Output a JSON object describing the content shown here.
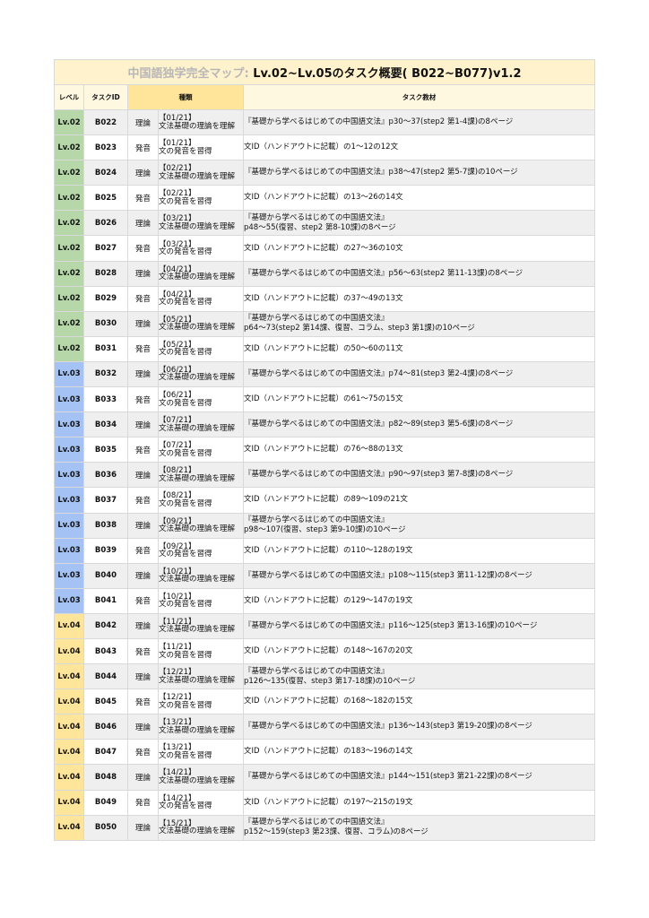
{
  "title": {
    "prefix": "中国語独学完全マップ: ",
    "main": "Lv.02~Lv.05のタスク概要( B022~B077)v1.2"
  },
  "headers": {
    "level": "レベル",
    "task_id": "タスクID",
    "kind": "種類",
    "material": "タスク教材"
  },
  "level_colors": {
    "Lv.02": "#b6d7a8",
    "Lv.03": "#a4c2f4",
    "Lv.04": "#ffe599"
  },
  "rows": [
    {
      "level": "Lv.02",
      "id": "B022",
      "type": "理論",
      "note": "【01/21】\n文法基礎の理論を理解",
      "material": "『基礎から学べるはじめての中国語文法』p30～37(step2 第1-4課)の8ページ"
    },
    {
      "level": "Lv.02",
      "id": "B023",
      "type": "発音",
      "note": "【01/21】\n文の発音を習得",
      "material": "文ID（ハンドアウトに記載）の1～12の12文"
    },
    {
      "level": "Lv.02",
      "id": "B024",
      "type": "理論",
      "note": "【02/21】\n文法基礎の理論を理解",
      "material": "『基礎から学べるはじめての中国語文法』p38～47(step2 第5-7課)の10ページ"
    },
    {
      "level": "Lv.02",
      "id": "B025",
      "type": "発音",
      "note": "【02/21】\n文の発音を習得",
      "material": "文ID（ハンドアウトに記載）の13～26の14文"
    },
    {
      "level": "Lv.02",
      "id": "B026",
      "type": "理論",
      "note": "【03/21】\n文法基礎の理論を理解",
      "material": "『基礎から学べるはじめての中国語文法』\np48～55(復習、step2 第8-10課)の8ページ"
    },
    {
      "level": "Lv.02",
      "id": "B027",
      "type": "発音",
      "note": "【03/21】\n文の発音を習得",
      "material": "文ID（ハンドアウトに記載）の27～36の10文"
    },
    {
      "level": "Lv.02",
      "id": "B028",
      "type": "理論",
      "note": "【04/21】\n文法基礎の理論を理解",
      "material": "『基礎から学べるはじめての中国語文法』p56～63(step2 第11-13課)の8ページ"
    },
    {
      "level": "Lv.02",
      "id": "B029",
      "type": "発音",
      "note": "【04/21】\n文の発音を習得",
      "material": "文ID（ハンドアウトに記載）の37～49の13文"
    },
    {
      "level": "Lv.02",
      "id": "B030",
      "type": "理論",
      "note": "【05/21】\n文法基礎の理論を理解",
      "material": "『基礎から学べるはじめての中国語文法』\np64～73(step2 第14課、復習、コラム、step3 第1課)の10ページ"
    },
    {
      "level": "Lv.02",
      "id": "B031",
      "type": "発音",
      "note": "【05/21】\n文の発音を習得",
      "material": "文ID（ハンドアウトに記載）の50～60の11文"
    },
    {
      "level": "Lv.03",
      "id": "B032",
      "type": "理論",
      "note": "【06/21】\n文法基礎の理論を理解",
      "material": "『基礎から学べるはじめての中国語文法』p74～81(step3 第2-4課)の8ページ"
    },
    {
      "level": "Lv.03",
      "id": "B033",
      "type": "発音",
      "note": "【06/21】\n文の発音を習得",
      "material": "文ID（ハンドアウトに記載）の61～75の15文"
    },
    {
      "level": "Lv.03",
      "id": "B034",
      "type": "理論",
      "note": "【07/21】\n文法基礎の理論を理解",
      "material": "『基礎から学べるはじめての中国語文法』p82～89(step3 第5-6課)の8ページ"
    },
    {
      "level": "Lv.03",
      "id": "B035",
      "type": "発音",
      "note": "【07/21】\n文の発音を習得",
      "material": "文ID（ハンドアウトに記載）の76～88の13文"
    },
    {
      "level": "Lv.03",
      "id": "B036",
      "type": "理論",
      "note": "【08/21】\n文法基礎の理論を理解",
      "material": "『基礎から学べるはじめての中国語文法』p90～97(step3 第7-8課)の8ページ"
    },
    {
      "level": "Lv.03",
      "id": "B037",
      "type": "発音",
      "note": "【08/21】\n文の発音を習得",
      "material": "文ID（ハンドアウトに記載）の89～109の21文"
    },
    {
      "level": "Lv.03",
      "id": "B038",
      "type": "理論",
      "note": "【09/21】\n文法基礎の理論を理解",
      "material": "『基礎から学べるはじめての中国語文法』\np98～107(復習、step3 第9-10課)の10ページ"
    },
    {
      "level": "Lv.03",
      "id": "B039",
      "type": "発音",
      "note": "【09/21】\n文の発音を習得",
      "material": "文ID（ハンドアウトに記載）の110～128の19文"
    },
    {
      "level": "Lv.03",
      "id": "B040",
      "type": "理論",
      "note": "【10/21】\n文法基礎の理論を理解",
      "material": "『基礎から学べるはじめての中国語文法』p108～115(step3 第11-12課)の8ページ"
    },
    {
      "level": "Lv.03",
      "id": "B041",
      "type": "発音",
      "note": "【10/21】\n文の発音を習得",
      "material": "文ID（ハンドアウトに記載）の129～147の19文"
    },
    {
      "level": "Lv.04",
      "id": "B042",
      "type": "理論",
      "note": "【11/21】\n文法基礎の理論を理解",
      "material": "『基礎から学べるはじめての中国語文法』p116～125(step3 第13-16課)の10ページ"
    },
    {
      "level": "Lv.04",
      "id": "B043",
      "type": "発音",
      "note": "【11/21】\n文の発音を習得",
      "material": "文ID（ハンドアウトに記載）の148～167の20文"
    },
    {
      "level": "Lv.04",
      "id": "B044",
      "type": "理論",
      "note": "【12/21】\n文法基礎の理論を理解",
      "material": "『基礎から学べるはじめての中国語文法』\np126～135(復習、step3 第17-18課)の10ページ"
    },
    {
      "level": "Lv.04",
      "id": "B045",
      "type": "発音",
      "note": "【12/21】\n文の発音を習得",
      "material": "文ID（ハンドアウトに記載）の168～182の15文"
    },
    {
      "level": "Lv.04",
      "id": "B046",
      "type": "理論",
      "note": "【13/21】\n文法基礎の理論を理解",
      "material": "『基礎から学べるはじめての中国語文法』p136～143(step3 第19-20課)の8ページ"
    },
    {
      "level": "Lv.04",
      "id": "B047",
      "type": "発音",
      "note": "【13/21】\n文の発音を習得",
      "material": "文ID（ハンドアウトに記載）の183～196の14文"
    },
    {
      "level": "Lv.04",
      "id": "B048",
      "type": "理論",
      "note": "【14/21】\n文法基礎の理論を理解",
      "material": "『基礎から学べるはじめての中国語文法』p144～151(step3 第21-22課)の8ページ"
    },
    {
      "level": "Lv.04",
      "id": "B049",
      "type": "発音",
      "note": "【14/21】\n文の発音を習得",
      "material": "文ID（ハンドアウトに記載）の197～215の19文"
    },
    {
      "level": "Lv.04",
      "id": "B050",
      "type": "理論",
      "note": "【15/21】\n文法基礎の理論を理解",
      "material": "『基礎から学べるはじめての中国語文法』\np152～159(step3 第23課、復習、コラム)の8ページ"
    }
  ]
}
